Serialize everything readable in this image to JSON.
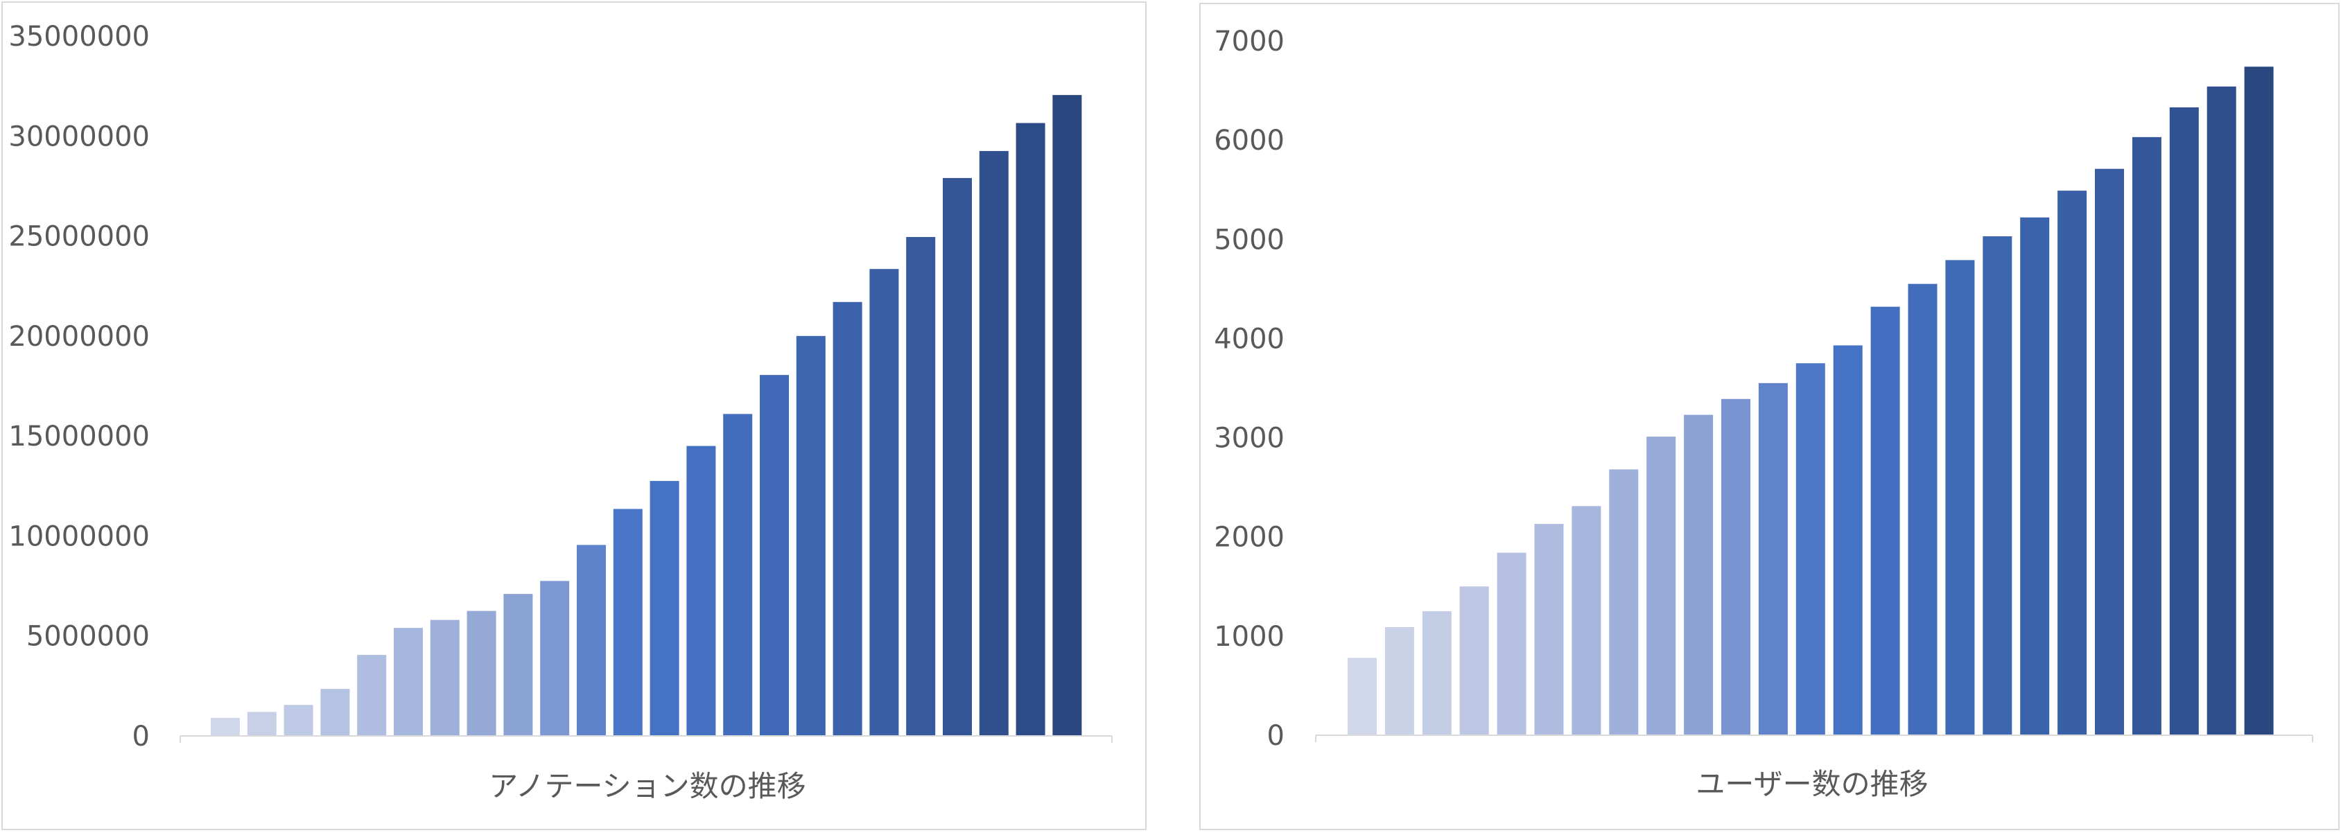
{
  "chart_data": [
    {
      "type": "bar",
      "title": "",
      "xlabel": "アノテーション数の推移",
      "ylabel": "",
      "ylim": [
        0,
        35000000
      ],
      "yticks": [
        "0",
        "5000000",
        "10000000",
        "15000000",
        "20000000",
        "25000000",
        "30000000",
        "35000000"
      ],
      "grid": false,
      "legend": "none",
      "values": [
        900000,
        1200000,
        1550000,
        2350000,
        4050000,
        5400000,
        5800000,
        6250000,
        7100000,
        7750000,
        9550000,
        11350000,
        12750000,
        14500000,
        16100000,
        18050000,
        20000000,
        21700000,
        23350000,
        24950000,
        27900000,
        29250000,
        30650000,
        32050000
      ],
      "colors": [
        "#d0d7ea",
        "#c7d0e7",
        "#becae5",
        "#b5c3e2",
        "#aebde0",
        "#a6b7dd",
        "#9dafda",
        "#95a9d7",
        "#8ba2d5",
        "#7d97d3",
        "#5e83cb",
        "#4a76c8",
        "#4472c4",
        "#4370c1",
        "#426ebd",
        "#3f69b6",
        "#3d66b1",
        "#3b62ab",
        "#395ea5",
        "#375a9e",
        "#335495",
        "#30508e",
        "#2d4c87",
        "#2b4780"
      ]
    },
    {
      "type": "bar",
      "title": "",
      "xlabel": "ユーザー数の推移",
      "ylabel": "",
      "ylim": [
        0,
        7000
      ],
      "yticks": [
        "0",
        "1000",
        "2000",
        "3000",
        "4000",
        "5000",
        "6000",
        "7000"
      ],
      "grid": false,
      "legend": "none",
      "values": [
        780,
        1090,
        1250,
        1500,
        1840,
        2130,
        2310,
        2680,
        3010,
        3230,
        3390,
        3550,
        3750,
        3930,
        4320,
        4550,
        4790,
        5030,
        5220,
        5490,
        5710,
        6030,
        6330,
        6540,
        6740
      ],
      "colors": [
        "#d0d7ea",
        "#cad2e8",
        "#c4cde6",
        "#bdc7e4",
        "#b6c1e1",
        "#afbcdf",
        "#a7b6dd",
        "#9fb0da",
        "#97aad8",
        "#8ea3d5",
        "#7a95d2",
        "#5f84cc",
        "#4c77c7",
        "#4472c4",
        "#436fc0",
        "#416dbb",
        "#3f6ab6",
        "#3d66b1",
        "#3b63ac",
        "#3960a6",
        "#375ca1",
        "#34579a",
        "#315292",
        "#2e4d8b",
        "#2b4780"
      ]
    }
  ]
}
